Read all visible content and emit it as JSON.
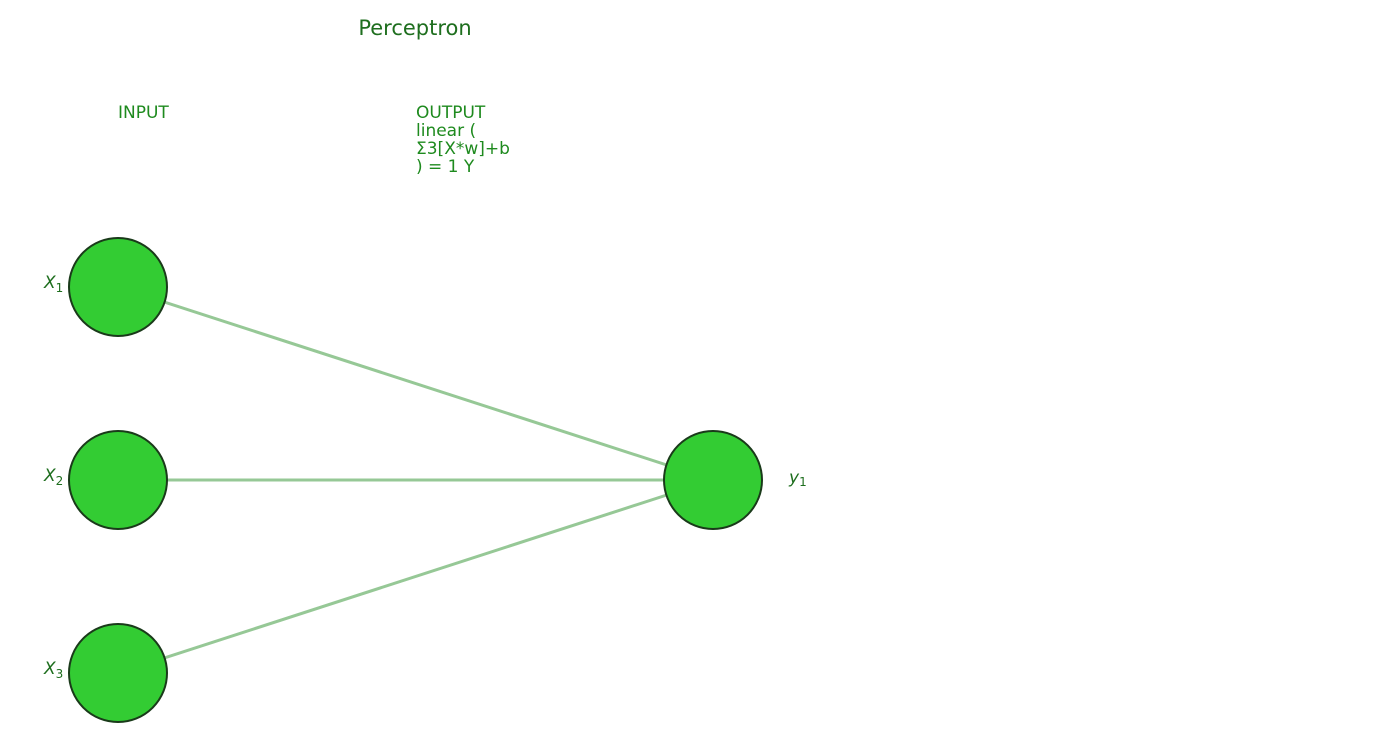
{
  "title": "Perceptron",
  "input_layer": {
    "label": "INPUT"
  },
  "output_layer": {
    "lines": [
      "OUTPUT",
      "linear (",
      "Σ3[X*w]+b",
      ") = 1 Y"
    ]
  },
  "inputs": [
    {
      "symbol": "X",
      "sub": "1"
    },
    {
      "symbol": "X",
      "sub": "2"
    },
    {
      "symbol": "X",
      "sub": "3"
    }
  ],
  "output": {
    "symbol": "y",
    "sub": "1"
  },
  "colors": {
    "node_fill": "#33cc33",
    "node_stroke": "#1a3a1a",
    "edge": "#96c896",
    "text": "#1e6e1e"
  }
}
